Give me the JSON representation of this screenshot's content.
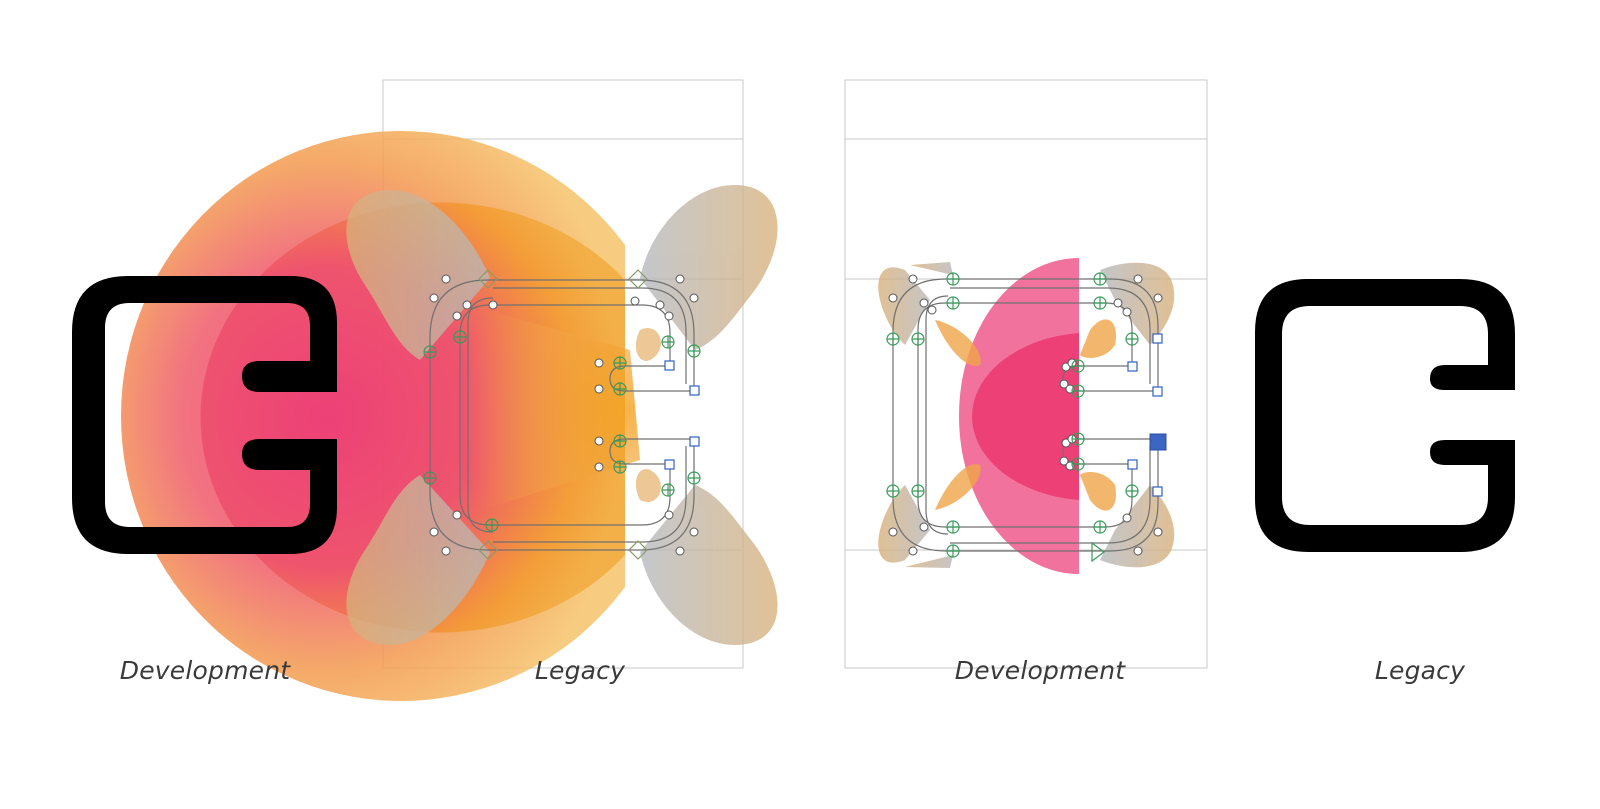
{
  "captions": {
    "left_development": "Development",
    "left_legacy": "Legacy",
    "right_development": "Development",
    "right_legacy": "Legacy"
  },
  "colors": {
    "background": "#ffffff",
    "glyph_fill": "#000000",
    "glyph_outline": "#6f6f6f",
    "frame_line": "#c8c8c8",
    "gradient_pink": "#ee3b78",
    "gradient_orange": "#f39a2e",
    "gradient_yellow": "#f3c155",
    "handle_tan": "#d6b27a",
    "handle_gray": "#aab3bd",
    "smooth_point": "#3a9a5c",
    "corner_point": "#3060c0",
    "selected_point": "#3b66c4"
  },
  "icons": {
    "smooth_node": "circle-plus",
    "corner_node": "square",
    "tangent_node": "diamond",
    "offcurve_handle": "hollow-circle",
    "start_node": "triangle"
  }
}
